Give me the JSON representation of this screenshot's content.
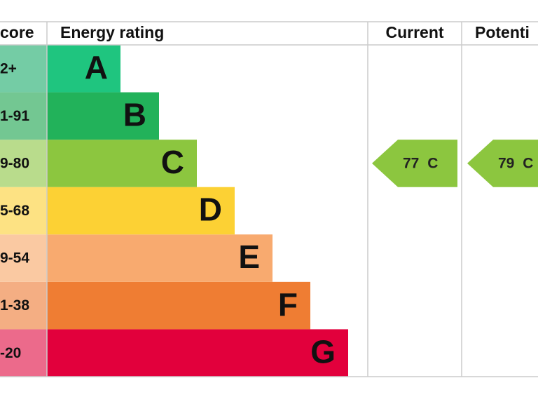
{
  "header": {
    "score": "core",
    "rating": "Energy rating",
    "current": "Current",
    "potential": "Potenti"
  },
  "rows": [
    {
      "score": "2+",
      "letter": "A",
      "color": "#1fc57f",
      "score_color": "#74cca5"
    },
    {
      "score": "1-91",
      "letter": "B",
      "color": "#22b25a",
      "score_color": "#73c792"
    },
    {
      "score": "9-80",
      "letter": "C",
      "color": "#8cc63f",
      "score_color": "#b9dc8c"
    },
    {
      "score": "5-68",
      "letter": "D",
      "color": "#fcd134",
      "score_color": "#fde283"
    },
    {
      "score": "9-54",
      "letter": "E",
      "color": "#f8aa6f",
      "score_color": "#fac9a2"
    },
    {
      "score": "1-38",
      "letter": "F",
      "color": "#ef7d33",
      "score_color": "#f4ae83"
    },
    {
      "score": "-20",
      "letter": "G",
      "color": "#e2003c",
      "score_color": "#ec6a8b"
    }
  ],
  "current": {
    "label": "77 C",
    "row": 2,
    "color": "#8cc63f"
  },
  "potential": {
    "label": "79 C",
    "row": 2,
    "color": "#8cc63f"
  }
}
